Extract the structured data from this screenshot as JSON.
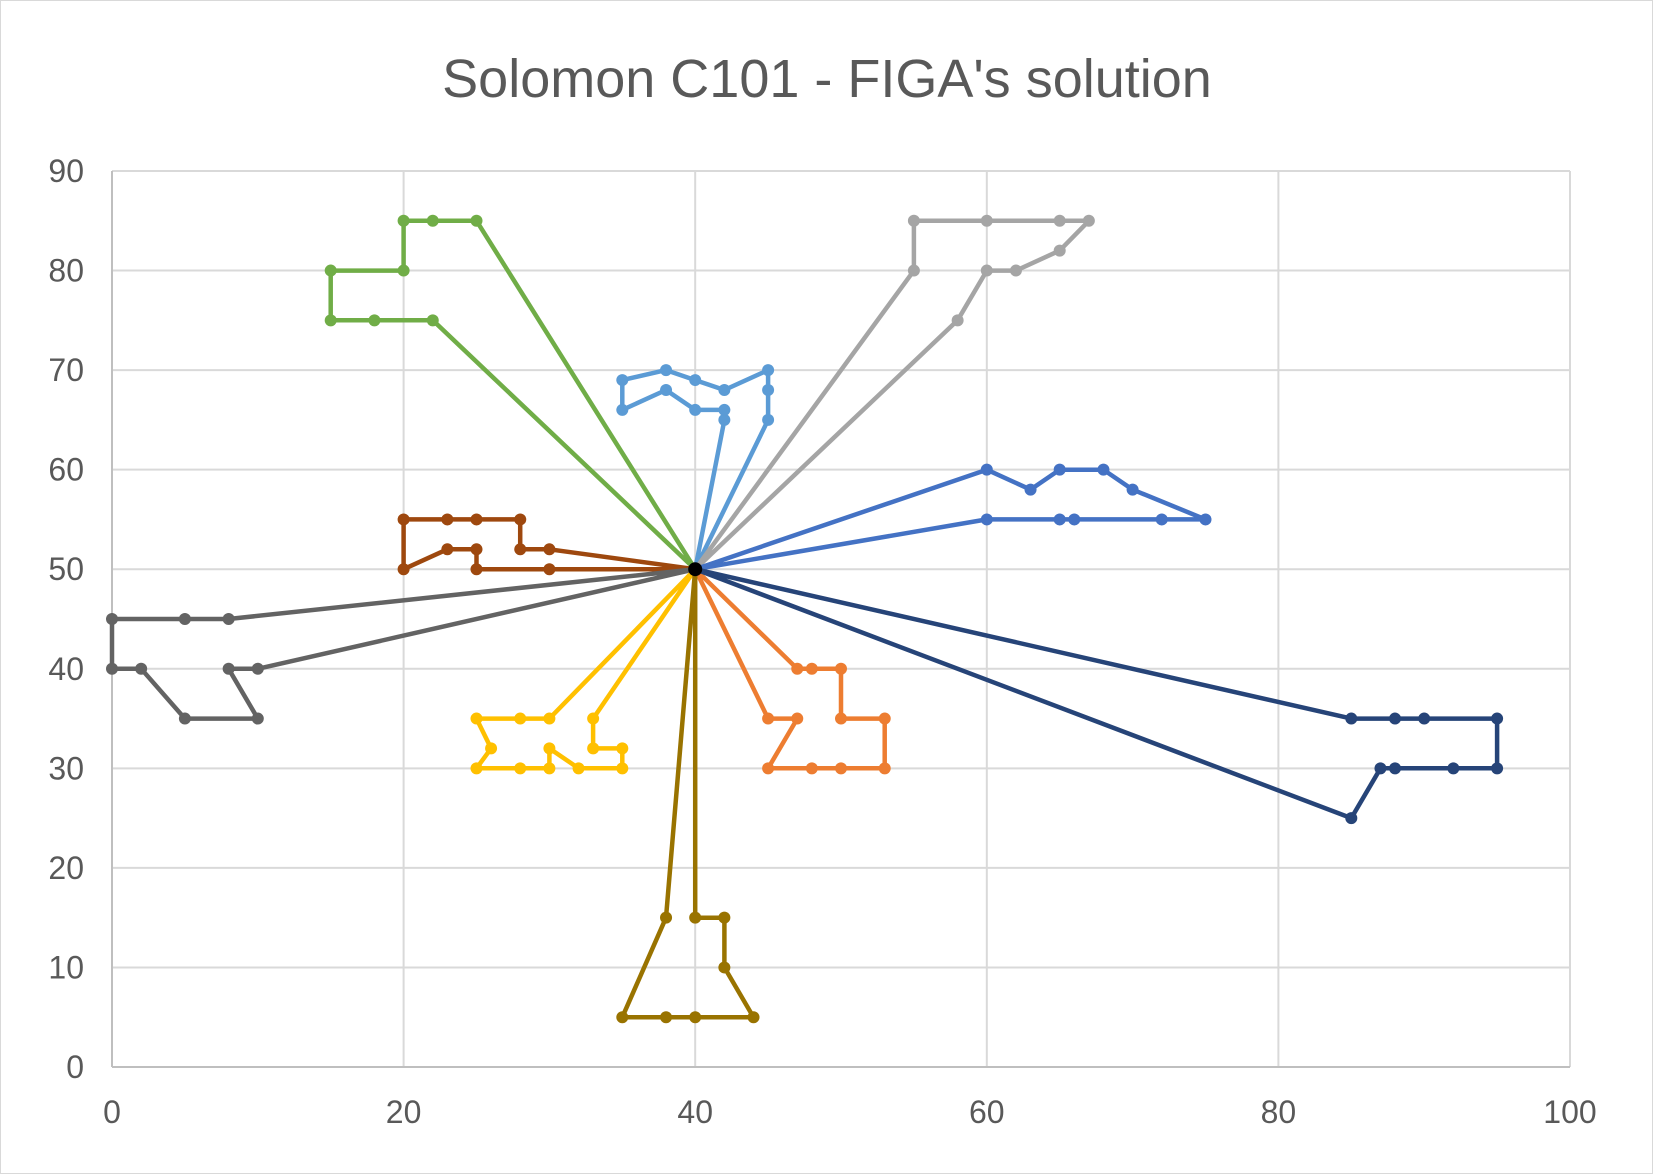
{
  "chart_data": {
    "type": "scatter",
    "title": "Solomon C101 - FIGA's solution",
    "xlabel": "",
    "ylabel": "",
    "xlim": [
      0,
      100
    ],
    "ylim": [
      0,
      90
    ],
    "x_ticks": [
      0,
      20,
      40,
      60,
      80,
      100
    ],
    "y_ticks": [
      0,
      10,
      20,
      30,
      40,
      50,
      60,
      70,
      80,
      90
    ],
    "grid": true,
    "legend": "none",
    "depot": {
      "x": 40,
      "y": 50,
      "color": "#000000"
    },
    "series": [
      {
        "color": "#70ad47",
        "points": [
          [
            40,
            50
          ],
          [
            22,
            75
          ],
          [
            18,
            75
          ],
          [
            15,
            75
          ],
          [
            15,
            80
          ],
          [
            20,
            80
          ],
          [
            20,
            85
          ],
          [
            22,
            85
          ],
          [
            25,
            85
          ],
          [
            40,
            50
          ]
        ]
      },
      {
        "color": "#5b9bd5",
        "points": [
          [
            40,
            50
          ],
          [
            42,
            65
          ],
          [
            42,
            66
          ],
          [
            40,
            66
          ],
          [
            38,
            68
          ],
          [
            35,
            66
          ],
          [
            35,
            69
          ],
          [
            38,
            70
          ],
          [
            40,
            69
          ],
          [
            42,
            68
          ],
          [
            45,
            70
          ],
          [
            45,
            68
          ],
          [
            45,
            65
          ],
          [
            40,
            50
          ]
        ]
      },
      {
        "color": "#a5a5a5",
        "points": [
          [
            40,
            50
          ],
          [
            55,
            80
          ],
          [
            55,
            85
          ],
          [
            60,
            85
          ],
          [
            65,
            85
          ],
          [
            67,
            85
          ],
          [
            65,
            82
          ],
          [
            62,
            80
          ],
          [
            60,
            80
          ],
          [
            58,
            75
          ],
          [
            40,
            50
          ]
        ]
      },
      {
        "color": "#4472c4",
        "points": [
          [
            40,
            50
          ],
          [
            60,
            60
          ],
          [
            63,
            58
          ],
          [
            65,
            60
          ],
          [
            68,
            60
          ],
          [
            70,
            58
          ],
          [
            75,
            55
          ],
          [
            72,
            55
          ],
          [
            66,
            55
          ],
          [
            65,
            55
          ],
          [
            60,
            55
          ],
          [
            40,
            50
          ]
        ]
      },
      {
        "color": "#9e480e",
        "points": [
          [
            40,
            50
          ],
          [
            30,
            52
          ],
          [
            28,
            52
          ],
          [
            28,
            55
          ],
          [
            25,
            55
          ],
          [
            23,
            55
          ],
          [
            20,
            55
          ],
          [
            20,
            50
          ],
          [
            23,
            52
          ],
          [
            25,
            52
          ],
          [
            25,
            50
          ],
          [
            30,
            50
          ],
          [
            40,
            50
          ]
        ]
      },
      {
        "color": "#636363",
        "points": [
          [
            40,
            50
          ],
          [
            8,
            45
          ],
          [
            5,
            45
          ],
          [
            0,
            45
          ],
          [
            0,
            40
          ],
          [
            2,
            40
          ],
          [
            5,
            35
          ],
          [
            10,
            35
          ],
          [
            8,
            40
          ],
          [
            10,
            40
          ],
          [
            40,
            50
          ]
        ]
      },
      {
        "color": "#ffc000",
        "points": [
          [
            40,
            50
          ],
          [
            30,
            35
          ],
          [
            28,
            35
          ],
          [
            25,
            35
          ],
          [
            26,
            32
          ],
          [
            25,
            30
          ],
          [
            28,
            30
          ],
          [
            30,
            30
          ],
          [
            30,
            32
          ],
          [
            32,
            30
          ],
          [
            35,
            30
          ],
          [
            35,
            32
          ],
          [
            33,
            32
          ],
          [
            33,
            35
          ],
          [
            40,
            50
          ]
        ]
      },
      {
        "color": "#ed7d31",
        "points": [
          [
            40,
            50
          ],
          [
            47,
            40
          ],
          [
            48,
            40
          ],
          [
            50,
            40
          ],
          [
            50,
            35
          ],
          [
            53,
            35
          ],
          [
            53,
            30
          ],
          [
            50,
            30
          ],
          [
            48,
            30
          ],
          [
            45,
            30
          ],
          [
            47,
            35
          ],
          [
            45,
            35
          ],
          [
            40,
            50
          ]
        ]
      },
      {
        "color": "#264478",
        "points": [
          [
            40,
            50
          ],
          [
            85,
            35
          ],
          [
            88,
            35
          ],
          [
            90,
            35
          ],
          [
            95,
            35
          ],
          [
            95,
            30
          ],
          [
            92,
            30
          ],
          [
            88,
            30
          ],
          [
            87,
            30
          ],
          [
            85,
            25
          ],
          [
            40,
            50
          ]
        ]
      },
      {
        "color": "#997300",
        "points": [
          [
            40,
            50
          ],
          [
            40,
            15
          ],
          [
            42,
            15
          ],
          [
            42,
            10
          ],
          [
            44,
            5
          ],
          [
            40,
            5
          ],
          [
            38,
            5
          ],
          [
            35,
            5
          ],
          [
            38,
            15
          ],
          [
            40,
            50
          ]
        ]
      }
    ]
  }
}
